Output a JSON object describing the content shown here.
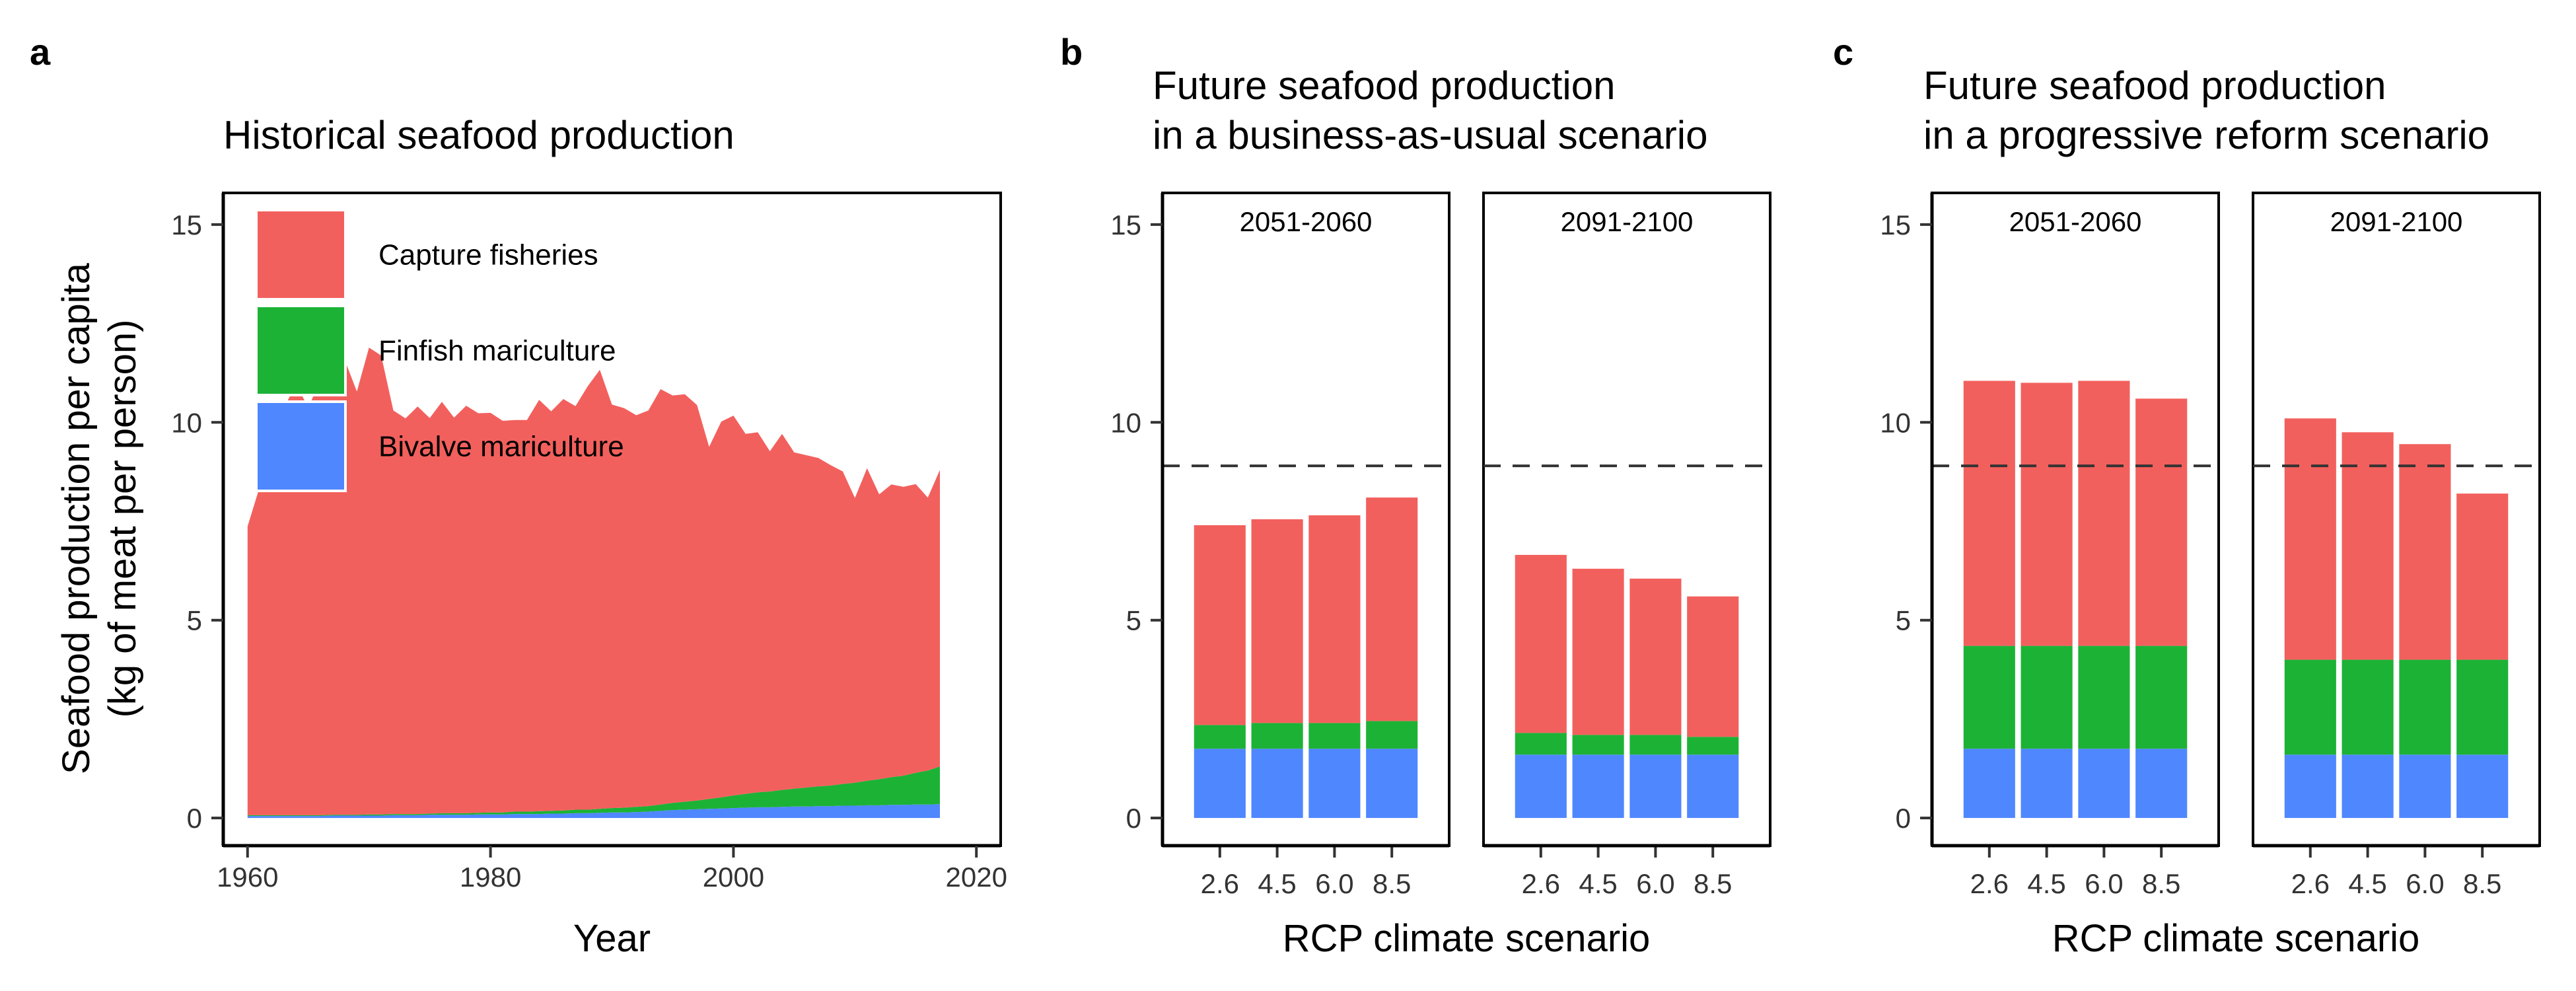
{
  "colors": {
    "capture": "#F2605D",
    "finfish": "#1CB236",
    "bivalve": "#4F87FF",
    "reference": "#333333"
  },
  "chart_data": [
    {
      "id": "a",
      "panel_letter": "a",
      "type": "area",
      "title": [
        "Historical seafood production"
      ],
      "ylabel": [
        "Seafood production per capita",
        "(kg of meat per person)"
      ],
      "xlabel": "Year",
      "xlim": [
        1958,
        2022
      ],
      "ylim": [
        -0.7,
        15.8
      ],
      "x_ticks": [
        1960,
        1980,
        2000,
        2020
      ],
      "y_ticks": [
        0,
        5,
        10,
        15
      ],
      "stacked": true,
      "legend": {
        "position": "top-left",
        "entries": [
          {
            "key": "capture",
            "label": "Capture fisheries"
          },
          {
            "key": "finfish",
            "label": "Finfish mariculture"
          },
          {
            "key": "bivalve",
            "label": "Bivalve mariculture"
          }
        ]
      },
      "x": [
        1960,
        1961,
        1962,
        1963,
        1964,
        1965,
        1966,
        1967,
        1968,
        1969,
        1970,
        1971,
        1972,
        1973,
        1974,
        1975,
        1976,
        1977,
        1978,
        1979,
        1980,
        1981,
        1982,
        1983,
        1984,
        1985,
        1986,
        1987,
        1988,
        1989,
        1990,
        1991,
        1992,
        1993,
        1994,
        1995,
        1996,
        1997,
        1998,
        1999,
        2000,
        2001,
        2002,
        2003,
        2004,
        2005,
        2006,
        2007,
        2008,
        2009,
        2010,
        2011,
        2012,
        2013,
        2014,
        2015,
        2016,
        2017
      ],
      "series": [
        {
          "key": "bivalve",
          "name": "Bivalve mariculture",
          "values": [
            0.05,
            0.05,
            0.05,
            0.05,
            0.05,
            0.05,
            0.05,
            0.06,
            0.06,
            0.06,
            0.06,
            0.06,
            0.07,
            0.07,
            0.07,
            0.08,
            0.08,
            0.08,
            0.08,
            0.09,
            0.09,
            0.09,
            0.1,
            0.1,
            0.1,
            0.11,
            0.11,
            0.12,
            0.12,
            0.13,
            0.14,
            0.14,
            0.15,
            0.16,
            0.18,
            0.2,
            0.21,
            0.22,
            0.23,
            0.24,
            0.25,
            0.26,
            0.27,
            0.27,
            0.28,
            0.29,
            0.29,
            0.3,
            0.3,
            0.31,
            0.31,
            0.32,
            0.32,
            0.33,
            0.33,
            0.34,
            0.34,
            0.35
          ]
        },
        {
          "key": "finfish",
          "name": "Finfish mariculture",
          "values": [
            0.02,
            0.02,
            0.02,
            0.02,
            0.02,
            0.02,
            0.02,
            0.02,
            0.02,
            0.02,
            0.03,
            0.03,
            0.03,
            0.03,
            0.03,
            0.03,
            0.04,
            0.04,
            0.04,
            0.04,
            0.05,
            0.05,
            0.06,
            0.06,
            0.07,
            0.07,
            0.08,
            0.09,
            0.09,
            0.1,
            0.11,
            0.12,
            0.13,
            0.14,
            0.16,
            0.18,
            0.2,
            0.22,
            0.25,
            0.28,
            0.32,
            0.35,
            0.38,
            0.4,
            0.43,
            0.45,
            0.48,
            0.5,
            0.52,
            0.55,
            0.58,
            0.62,
            0.66,
            0.7,
            0.74,
            0.8,
            0.86,
            0.95
          ]
        },
        {
          "key": "capture",
          "name": "Capture fisheries",
          "values": [
            7.3,
            8.3,
            9.6,
            10.3,
            10.9,
            10.3,
            11.0,
            10.8,
            11.5,
            10.7,
            11.8,
            11.6,
            10.2,
            10.0,
            10.3,
            10.0,
            10.4,
            10.0,
            10.3,
            10.1,
            10.1,
            9.9,
            9.9,
            9.9,
            10.4,
            10.1,
            10.4,
            10.2,
            10.7,
            11.1,
            10.2,
            10.1,
            9.9,
            10.0,
            10.5,
            10.3,
            10.3,
            10.0,
            8.9,
            9.5,
            9.6,
            9.1,
            9.1,
            8.6,
            9.0,
            8.5,
            8.4,
            8.3,
            8.1,
            7.9,
            7.2,
            7.9,
            7.2,
            7.4,
            7.3,
            7.3,
            6.9,
            7.5
          ]
        }
      ]
    },
    {
      "id": "b",
      "panel_letter": "b",
      "type": "bar",
      "title": [
        "Future seafood production",
        "in a business-as-usual scenario"
      ],
      "xlabel": "RCP climate scenario",
      "ylabel": "",
      "ylim": [
        -0.7,
        15.8
      ],
      "y_ticks": [
        0,
        5,
        10,
        15
      ],
      "reference_line": 8.9,
      "stacked": true,
      "facets": [
        {
          "label": "2051-2060",
          "categories": [
            "2.6",
            "4.5",
            "6.0",
            "8.5"
          ],
          "series": [
            {
              "key": "bivalve",
              "values": [
                1.75,
                1.75,
                1.75,
                1.75
              ]
            },
            {
              "key": "finfish",
              "values": [
                0.6,
                0.65,
                0.65,
                0.7
              ]
            },
            {
              "key": "capture",
              "values": [
                5.05,
                5.15,
                5.25,
                5.65
              ]
            }
          ]
        },
        {
          "label": "2091-2100",
          "categories": [
            "2.6",
            "4.5",
            "6.0",
            "8.5"
          ],
          "series": [
            {
              "key": "bivalve",
              "values": [
                1.6,
                1.6,
                1.6,
                1.6
              ]
            },
            {
              "key": "finfish",
              "values": [
                0.55,
                0.5,
                0.5,
                0.45
              ]
            },
            {
              "key": "capture",
              "values": [
                4.5,
                4.2,
                3.95,
                3.55
              ]
            }
          ]
        }
      ]
    },
    {
      "id": "c",
      "panel_letter": "c",
      "type": "bar",
      "title": [
        "Future seafood production",
        "in a progressive reform scenario"
      ],
      "xlabel": "RCP climate scenario",
      "ylabel": "",
      "ylim": [
        -0.7,
        15.8
      ],
      "y_ticks": [
        0,
        5,
        10,
        15
      ],
      "reference_line": 8.9,
      "stacked": true,
      "facets": [
        {
          "label": "2051-2060",
          "categories": [
            "2.6",
            "4.5",
            "6.0",
            "8.5"
          ],
          "series": [
            {
              "key": "bivalve",
              "values": [
                1.75,
                1.75,
                1.75,
                1.75
              ]
            },
            {
              "key": "finfish",
              "values": [
                2.6,
                2.6,
                2.6,
                2.6
              ]
            },
            {
              "key": "capture",
              "values": [
                6.7,
                6.65,
                6.7,
                6.25
              ]
            }
          ]
        },
        {
          "label": "2091-2100",
          "categories": [
            "2.6",
            "4.5",
            "6.0",
            "8.5"
          ],
          "series": [
            {
              "key": "bivalve",
              "values": [
                1.6,
                1.6,
                1.6,
                1.6
              ]
            },
            {
              "key": "finfish",
              "values": [
                2.4,
                2.4,
                2.4,
                2.4
              ]
            },
            {
              "key": "capture",
              "values": [
                6.1,
                5.75,
                5.45,
                4.2
              ]
            }
          ]
        }
      ]
    }
  ]
}
